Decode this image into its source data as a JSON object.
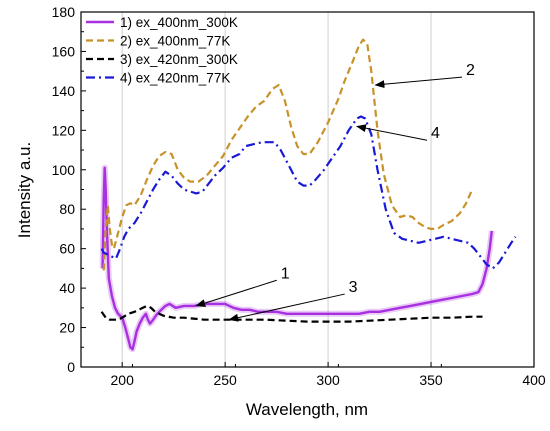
{
  "chart_data": {
    "type": "line",
    "title": "",
    "xlabel": "Wavelength, nm",
    "ylabel": "Intensity a.u.",
    "xlim": [
      180,
      400
    ],
    "ylim": [
      0,
      180
    ],
    "x_ticks": [
      200,
      250,
      300,
      350,
      400
    ],
    "x_tick_labels": [
      "200",
      "250",
      "300",
      "350",
      "400"
    ],
    "y_ticks": [
      0,
      20,
      40,
      60,
      80,
      100,
      120,
      140,
      160,
      180
    ],
    "y_tick_labels": [
      "0",
      "20",
      "40",
      "60",
      "80",
      "100",
      "120",
      "140",
      "160",
      "180"
    ],
    "grid": "vertical",
    "legend_position": "top-left",
    "series": [
      {
        "name": "1) ex_400nm_300K",
        "color": "#a830e0",
        "style": "solid",
        "points": [
          [
            190.5,
            50
          ],
          [
            191,
            85
          ],
          [
            191.5,
            101
          ],
          [
            192,
            90
          ],
          [
            192.5,
            72
          ],
          [
            193.5,
            45
          ],
          [
            195,
            36
          ],
          [
            196.5,
            30
          ],
          [
            198,
            27
          ],
          [
            200,
            25
          ],
          [
            201.5,
            20
          ],
          [
            203,
            14
          ],
          [
            204,
            10
          ],
          [
            205,
            9
          ],
          [
            206,
            13
          ],
          [
            207,
            18
          ],
          [
            208.5,
            22
          ],
          [
            210,
            25
          ],
          [
            211.5,
            27
          ],
          [
            212.5,
            24
          ],
          [
            213.5,
            22
          ],
          [
            215,
            24
          ],
          [
            217,
            27
          ],
          [
            219,
            29
          ],
          [
            221,
            31
          ],
          [
            223,
            32
          ],
          [
            226,
            30
          ],
          [
            230,
            31
          ],
          [
            235,
            31
          ],
          [
            239,
            32
          ],
          [
            242,
            32
          ],
          [
            246,
            32
          ],
          [
            250,
            32
          ],
          [
            254,
            30
          ],
          [
            258,
            29
          ],
          [
            262,
            29
          ],
          [
            266,
            28
          ],
          [
            270,
            28
          ],
          [
            275,
            28
          ],
          [
            280,
            27
          ],
          [
            285,
            27
          ],
          [
            290,
            27
          ],
          [
            295,
            27
          ],
          [
            300,
            27
          ],
          [
            305,
            27
          ],
          [
            310,
            27
          ],
          [
            315,
            27
          ],
          [
            320,
            28
          ],
          [
            325,
            28
          ],
          [
            330,
            29
          ],
          [
            335,
            30
          ],
          [
            340,
            31
          ],
          [
            345,
            32
          ],
          [
            350,
            33
          ],
          [
            355,
            34
          ],
          [
            360,
            35
          ],
          [
            365,
            36
          ],
          [
            370,
            37
          ],
          [
            373,
            38
          ],
          [
            375,
            42
          ],
          [
            377,
            50
          ],
          [
            378.5,
            60
          ],
          [
            379.5,
            69
          ]
        ]
      },
      {
        "name": "2) ex_400nm_77K",
        "color": "#c8922a",
        "style": "dashed",
        "points": [
          [
            191,
            49
          ],
          [
            192,
            70
          ],
          [
            193,
            82
          ],
          [
            194,
            70
          ],
          [
            195,
            62
          ],
          [
            196,
            60
          ],
          [
            198,
            68
          ],
          [
            200,
            76
          ],
          [
            202,
            82
          ],
          [
            204,
            83
          ],
          [
            206,
            82
          ],
          [
            209,
            87
          ],
          [
            212,
            95
          ],
          [
            215,
            102
          ],
          [
            218,
            107
          ],
          [
            221,
            109
          ],
          [
            224,
            108
          ],
          [
            227,
            100
          ],
          [
            230,
            96
          ],
          [
            233,
            94
          ],
          [
            237,
            94
          ],
          [
            241,
            97
          ],
          [
            245,
            102
          ],
          [
            249,
            107
          ],
          [
            253,
            115
          ],
          [
            257,
            121
          ],
          [
            261,
            127
          ],
          [
            265,
            132
          ],
          [
            269,
            135
          ],
          [
            273,
            141
          ],
          [
            276,
            143
          ],
          [
            279,
            135
          ],
          [
            282,
            122
          ],
          [
            285,
            112
          ],
          [
            288,
            108
          ],
          [
            291,
            108
          ],
          [
            295,
            114
          ],
          [
            300,
            124
          ],
          [
            305,
            136
          ],
          [
            308,
            145
          ],
          [
            312,
            155
          ],
          [
            315,
            163
          ],
          [
            317,
            166
          ],
          [
            319,
            164
          ],
          [
            321,
            150
          ],
          [
            324,
            120
          ],
          [
            327,
            98
          ],
          [
            331,
            82
          ],
          [
            335,
            76
          ],
          [
            338,
            77
          ],
          [
            341,
            76
          ],
          [
            344,
            73
          ],
          [
            347,
            71
          ],
          [
            350,
            70
          ],
          [
            353,
            70
          ],
          [
            356,
            72
          ],
          [
            360,
            74
          ],
          [
            364,
            78
          ],
          [
            367,
            83
          ],
          [
            370,
            90
          ]
        ]
      },
      {
        "name": "3) ex_420nm_300K",
        "color": "#000000",
        "style": "dashed",
        "points": [
          [
            190,
            28
          ],
          [
            192,
            25
          ],
          [
            194,
            24
          ],
          [
            196,
            24
          ],
          [
            198,
            24
          ],
          [
            200,
            25
          ],
          [
            203,
            27
          ],
          [
            206,
            28
          ],
          [
            208,
            29
          ],
          [
            210,
            30
          ],
          [
            212,
            31
          ],
          [
            214,
            30
          ],
          [
            216,
            28
          ],
          [
            220,
            26
          ],
          [
            225,
            25
          ],
          [
            230,
            25
          ],
          [
            240,
            24
          ],
          [
            250,
            24
          ],
          [
            260,
            24
          ],
          [
            270,
            24
          ],
          [
            280,
            23.5
          ],
          [
            290,
            23
          ],
          [
            300,
            23
          ],
          [
            310,
            23
          ],
          [
            320,
            23.5
          ],
          [
            330,
            24
          ],
          [
            340,
            24.5
          ],
          [
            350,
            25
          ],
          [
            360,
            25
          ],
          [
            370,
            25.5
          ],
          [
            375,
            25.5
          ]
        ]
      },
      {
        "name": "4) ex_420nm_77K",
        "color": "#1a1ad6",
        "style": "dashdot",
        "points": [
          [
            190,
            60
          ],
          [
            191,
            58
          ],
          [
            193,
            57
          ],
          [
            195,
            56
          ],
          [
            197,
            55
          ],
          [
            199,
            60
          ],
          [
            201,
            66
          ],
          [
            203,
            70
          ],
          [
            206,
            73
          ],
          [
            209,
            78
          ],
          [
            212,
            84
          ],
          [
            215,
            90
          ],
          [
            218,
            95
          ],
          [
            221,
            99
          ],
          [
            224,
            97
          ],
          [
            227,
            93
          ],
          [
            230,
            90
          ],
          [
            233,
            89
          ],
          [
            236,
            88
          ],
          [
            239,
            89
          ],
          [
            242,
            93
          ],
          [
            245,
            97
          ],
          [
            249,
            101
          ],
          [
            253,
            106
          ],
          [
            257,
            108
          ],
          [
            260,
            112
          ],
          [
            264,
            113
          ],
          [
            268,
            114
          ],
          [
            271,
            114
          ],
          [
            274,
            114
          ],
          [
            277,
            110
          ],
          [
            281,
            102
          ],
          [
            285,
            94
          ],
          [
            288,
            92
          ],
          [
            291,
            92
          ],
          [
            294,
            95
          ],
          [
            298,
            100
          ],
          [
            302,
            106
          ],
          [
            306,
            112
          ],
          [
            310,
            120
          ],
          [
            314,
            126
          ],
          [
            316,
            127
          ],
          [
            318,
            126
          ],
          [
            321,
            118
          ],
          [
            324,
            100
          ],
          [
            328,
            80
          ],
          [
            332,
            68
          ],
          [
            336,
            65
          ],
          [
            340,
            64
          ],
          [
            344,
            63
          ],
          [
            348,
            64
          ],
          [
            352,
            65
          ],
          [
            356,
            66
          ],
          [
            360,
            65
          ],
          [
            364,
            64
          ],
          [
            368,
            63
          ],
          [
            371,
            60
          ],
          [
            374,
            56
          ],
          [
            377,
            52
          ],
          [
            380,
            50
          ],
          [
            383,
            53
          ],
          [
            386,
            58
          ],
          [
            389,
            63
          ],
          [
            391,
            66
          ]
        ]
      }
    ],
    "annotations": [
      {
        "label": "1",
        "text_at": [
          277,
          45
        ],
        "arrow_to": [
          236,
          31
        ]
      },
      {
        "label": "2",
        "text_at": [
          367,
          148
        ],
        "arrow_to": [
          323,
          143
        ]
      },
      {
        "label": "3",
        "text_at": [
          310,
          38
        ],
        "arrow_to": [
          252,
          24
        ]
      },
      {
        "label": "4",
        "text_at": [
          350,
          116
        ],
        "arrow_to": [
          314,
          122
        ]
      }
    ]
  }
}
